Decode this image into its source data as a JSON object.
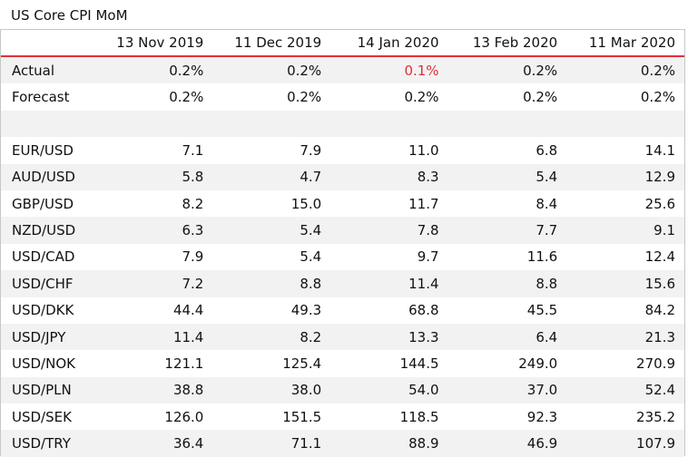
{
  "title": "US Core CPI MoM",
  "columns": [
    "13 Nov 2019",
    "11 Dec 2019",
    "14 Jan 2020",
    "13 Feb 2020",
    "11 Mar 2020"
  ],
  "colors": {
    "accent_red": "#e0303a",
    "shade": "#f2f2f2",
    "border": "#c7c7c7"
  },
  "rows": [
    {
      "label": "Actual",
      "values": [
        "0.2%",
        "0.2%",
        "0.1%",
        "0.2%",
        "0.2%"
      ],
      "highlight": [
        false,
        false,
        true,
        false,
        false
      ]
    },
    {
      "label": "Forecast",
      "values": [
        "0.2%",
        "0.2%",
        "0.2%",
        "0.2%",
        "0.2%"
      ]
    },
    {
      "label": "",
      "values": [
        "",
        "",
        "",
        "",
        ""
      ]
    },
    {
      "label": "EUR/USD",
      "values": [
        "7.1",
        "7.9",
        "11.0",
        "6.8",
        "14.1"
      ]
    },
    {
      "label": "AUD/USD",
      "values": [
        "5.8",
        "4.7",
        "8.3",
        "5.4",
        "12.9"
      ]
    },
    {
      "label": "GBP/USD",
      "values": [
        "8.2",
        "15.0",
        "11.7",
        "8.4",
        "25.6"
      ]
    },
    {
      "label": "NZD/USD",
      "values": [
        "6.3",
        "5.4",
        "7.8",
        "7.7",
        "9.1"
      ]
    },
    {
      "label": "USD/CAD",
      "values": [
        "7.9",
        "5.4",
        "9.7",
        "11.6",
        "12.4"
      ]
    },
    {
      "label": "USD/CHF",
      "values": [
        "7.2",
        "8.8",
        "11.4",
        "8.8",
        "15.6"
      ]
    },
    {
      "label": "USD/DKK",
      "values": [
        "44.4",
        "49.3",
        "68.8",
        "45.5",
        "84.2"
      ]
    },
    {
      "label": "USD/JPY",
      "values": [
        "11.4",
        "8.2",
        "13.3",
        "6.4",
        "21.3"
      ]
    },
    {
      "label": "USD/NOK",
      "values": [
        "121.1",
        "125.4",
        "144.5",
        "249.0",
        "270.9"
      ]
    },
    {
      "label": "USD/PLN",
      "values": [
        "38.8",
        "38.0",
        "54.0",
        "37.0",
        "52.4"
      ]
    },
    {
      "label": "USD/SEK",
      "values": [
        "126.0",
        "151.5",
        "118.5",
        "92.3",
        "235.2"
      ]
    },
    {
      "label": "USD/TRY",
      "values": [
        "36.4",
        "71.1",
        "88.9",
        "46.9",
        "107.9"
      ]
    }
  ]
}
